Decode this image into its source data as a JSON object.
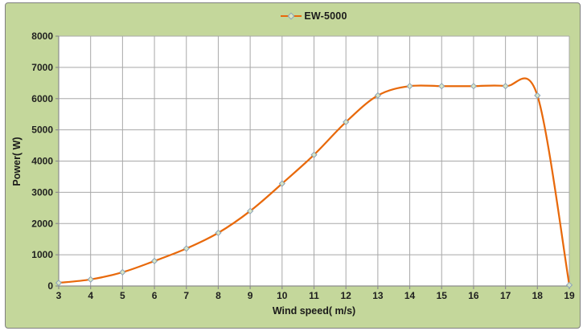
{
  "chart_data": {
    "type": "line",
    "title": "",
    "xlabel": "Wind speed( m/s)",
    "ylabel": "Power( W)",
    "x": [
      3,
      4,
      5,
      6,
      7,
      8,
      9,
      10,
      11,
      12,
      13,
      14,
      15,
      16,
      17,
      18,
      19
    ],
    "series": [
      {
        "name": "EW-5000",
        "values": [
          100,
          210,
          440,
          800,
          1200,
          1700,
          2400,
          3280,
          4200,
          5250,
          6100,
          6400,
          6400,
          6400,
          6400,
          6100,
          30
        ]
      }
    ],
    "xlim": [
      3,
      19
    ],
    "ylim": [
      0,
      8000
    ],
    "xtick_step": 1,
    "ytick_step": 1000,
    "grid": true,
    "smooth": true,
    "marker": "diamond",
    "legend_position": "top-center"
  },
  "legend": {
    "label": "EW-5000"
  },
  "colors": {
    "chart_background": "#c4d79b",
    "plot_background": "#ffffff",
    "chart_border": "#7f7f7f",
    "gridline": "#a8a8a8",
    "axis_line": "#8c8c8c",
    "line": "#e8690b",
    "marker_fill": "#d9e5c3",
    "marker_stroke": "#8aa2b8",
    "text": "#1f1f1f"
  }
}
